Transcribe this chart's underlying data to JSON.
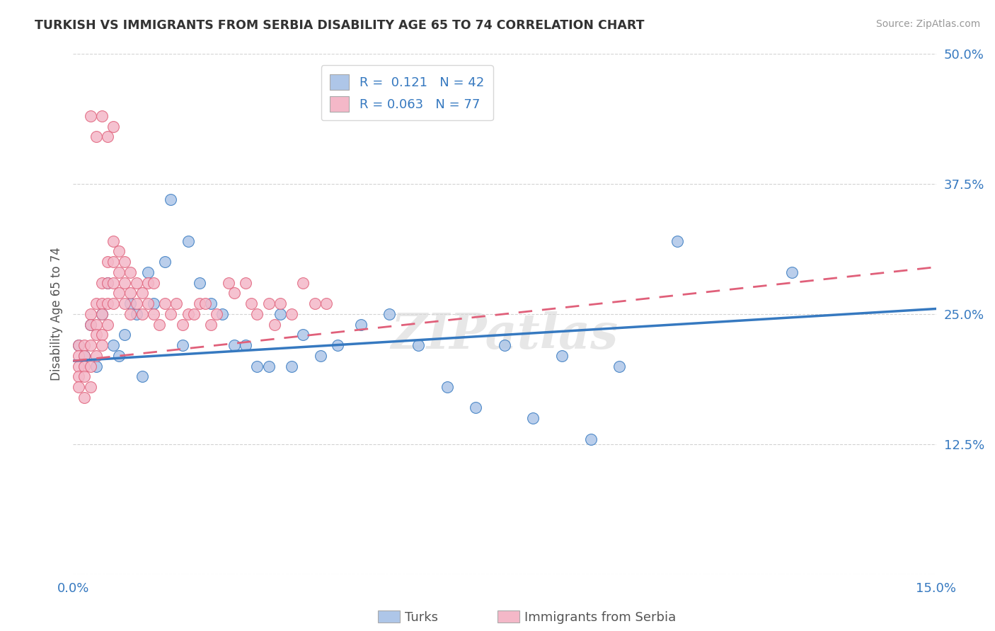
{
  "title": "TURKISH VS IMMIGRANTS FROM SERBIA DISABILITY AGE 65 TO 74 CORRELATION CHART",
  "source": "Source: ZipAtlas.com",
  "ylabel": "Disability Age 65 to 74",
  "xlim": [
    0.0,
    0.15
  ],
  "ylim": [
    0.0,
    0.5
  ],
  "xticks": [
    0.0,
    0.05,
    0.1,
    0.15
  ],
  "xticklabels": [
    "0.0%",
    "",
    "",
    "15.0%"
  ],
  "yticks": [
    0.0,
    0.125,
    0.25,
    0.375,
    0.5
  ],
  "yticklabels": [
    "",
    "12.5%",
    "25.0%",
    "37.5%",
    "50.0%"
  ],
  "turks_R": "0.121",
  "turks_N": "42",
  "serbia_R": "0.063",
  "serbia_N": "77",
  "turks_color": "#aec6e8",
  "turks_line_color": "#3679c0",
  "serbia_color": "#f4b8c8",
  "serbia_line_color": "#e0607a",
  "turks_x": [
    0.001,
    0.002,
    0.003,
    0.004,
    0.005,
    0.006,
    0.007,
    0.008,
    0.009,
    0.01,
    0.011,
    0.012,
    0.013,
    0.014,
    0.016,
    0.017,
    0.019,
    0.02,
    0.022,
    0.024,
    0.026,
    0.028,
    0.03,
    0.032,
    0.034,
    0.036,
    0.038,
    0.04,
    0.043,
    0.046,
    0.05,
    0.055,
    0.06,
    0.065,
    0.07,
    0.075,
    0.08,
    0.085,
    0.09,
    0.095,
    0.105,
    0.125
  ],
  "turks_y": [
    0.22,
    0.21,
    0.24,
    0.2,
    0.25,
    0.28,
    0.22,
    0.21,
    0.23,
    0.26,
    0.25,
    0.19,
    0.29,
    0.26,
    0.3,
    0.36,
    0.22,
    0.32,
    0.28,
    0.26,
    0.25,
    0.22,
    0.22,
    0.2,
    0.2,
    0.25,
    0.2,
    0.23,
    0.21,
    0.22,
    0.24,
    0.25,
    0.22,
    0.18,
    0.16,
    0.22,
    0.15,
    0.21,
    0.13,
    0.2,
    0.32,
    0.29
  ],
  "serbia_x": [
    0.001,
    0.001,
    0.001,
    0.001,
    0.001,
    0.002,
    0.002,
    0.002,
    0.002,
    0.002,
    0.003,
    0.003,
    0.003,
    0.003,
    0.003,
    0.004,
    0.004,
    0.004,
    0.004,
    0.005,
    0.005,
    0.005,
    0.005,
    0.005,
    0.006,
    0.006,
    0.006,
    0.006,
    0.007,
    0.007,
    0.007,
    0.007,
    0.008,
    0.008,
    0.008,
    0.009,
    0.009,
    0.009,
    0.01,
    0.01,
    0.01,
    0.011,
    0.011,
    0.012,
    0.012,
    0.013,
    0.013,
    0.014,
    0.014,
    0.015,
    0.016,
    0.017,
    0.018,
    0.019,
    0.02,
    0.021,
    0.022,
    0.023,
    0.024,
    0.025,
    0.027,
    0.028,
    0.03,
    0.031,
    0.032,
    0.034,
    0.035,
    0.036,
    0.038,
    0.04,
    0.042,
    0.044,
    0.003,
    0.004,
    0.005,
    0.006,
    0.007
  ],
  "serbia_y": [
    0.22,
    0.21,
    0.2,
    0.19,
    0.18,
    0.22,
    0.21,
    0.2,
    0.19,
    0.17,
    0.25,
    0.24,
    0.22,
    0.2,
    0.18,
    0.26,
    0.24,
    0.23,
    0.21,
    0.28,
    0.26,
    0.25,
    0.23,
    0.22,
    0.3,
    0.28,
    0.26,
    0.24,
    0.32,
    0.3,
    0.28,
    0.26,
    0.31,
    0.29,
    0.27,
    0.3,
    0.28,
    0.26,
    0.29,
    0.27,
    0.25,
    0.28,
    0.26,
    0.27,
    0.25,
    0.28,
    0.26,
    0.28,
    0.25,
    0.24,
    0.26,
    0.25,
    0.26,
    0.24,
    0.25,
    0.25,
    0.26,
    0.26,
    0.24,
    0.25,
    0.28,
    0.27,
    0.28,
    0.26,
    0.25,
    0.26,
    0.24,
    0.26,
    0.25,
    0.28,
    0.26,
    0.26,
    0.44,
    0.42,
    0.44,
    0.42,
    0.43
  ],
  "watermark": "ZIPatlas",
  "background_color": "#ffffff",
  "grid_color": "#c8c8c8"
}
